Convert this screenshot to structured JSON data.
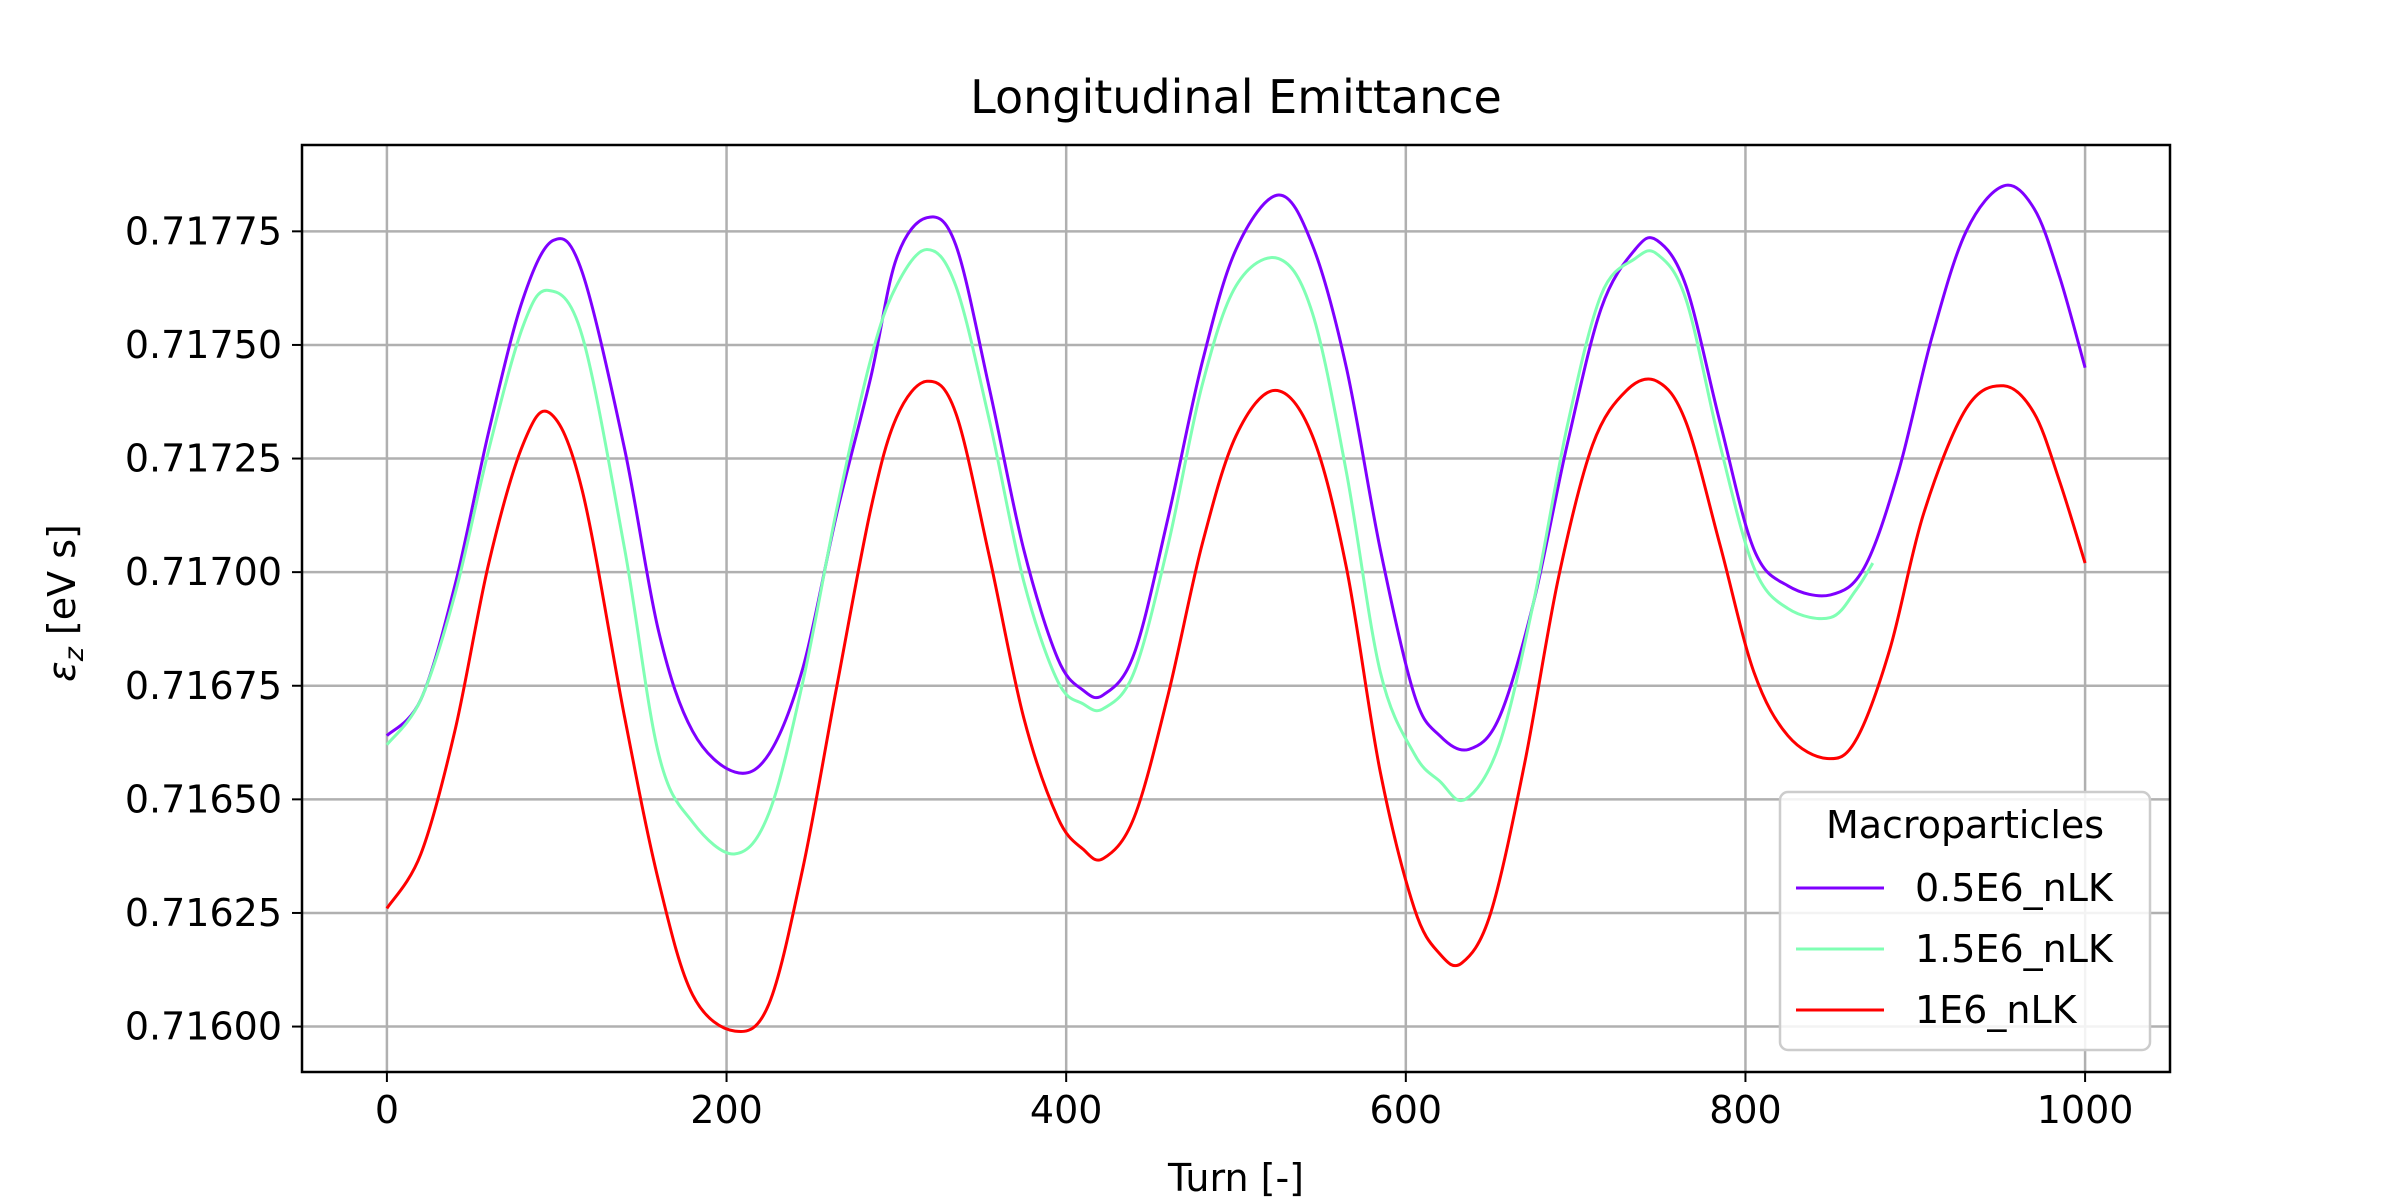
{
  "chart_data": {
    "type": "line",
    "title": "Longitudinal Emittance",
    "xlabel": "Turn [-]",
    "ylabel": "ε",
    "ylabel_sub": "z",
    "ylabel_unit": "[eV s]",
    "xlim": [
      -50,
      1050
    ],
    "ylim": [
      0.7159,
      0.71794
    ],
    "x_ticks": [
      0,
      200,
      400,
      600,
      800,
      1000
    ],
    "y_ticks": [
      0.716,
      0.71625,
      0.7165,
      0.71675,
      0.717,
      0.71725,
      0.7175,
      0.71775
    ],
    "x_tick_labels": [
      "0",
      "200",
      "400",
      "600",
      "800",
      "1000"
    ],
    "y_tick_labels": [
      "0.71600",
      "0.71625",
      "0.71650",
      "0.71675",
      "0.71700",
      "0.71725",
      "0.71750",
      "0.71775"
    ],
    "grid": true,
    "legend": {
      "title": "Macroparticles",
      "placement": "lower-right"
    },
    "series": [
      {
        "name": "0.5E6_nLK",
        "color": "#7f00ff",
        "x": [
          0,
          20,
          40,
          60,
          80,
          98,
          115,
          140,
          160,
          180,
          205,
          225,
          245,
          265,
          285,
          300,
          318,
          335,
          355,
          375,
          395,
          410,
          422,
          440,
          460,
          480,
          500,
          525,
          545,
          565,
          585,
          605,
          620,
          637,
          655,
          675,
          695,
          715,
          735,
          748,
          765,
          785,
          805,
          825,
          850,
          870,
          890,
          910,
          930,
          952,
          970,
          985,
          1000
        ],
        "y": [
          0.71664,
          0.71672,
          0.71697,
          0.71731,
          0.7176,
          0.71773,
          0.71766,
          0.71727,
          0.71687,
          0.71665,
          0.71656,
          0.7166,
          0.71679,
          0.71713,
          0.71743,
          0.71769,
          0.71778,
          0.71772,
          0.7174,
          0.71705,
          0.71681,
          0.71674,
          0.71673,
          0.71682,
          0.71712,
          0.71746,
          0.71771,
          0.71783,
          0.71772,
          0.71745,
          0.71705,
          0.71673,
          0.71664,
          0.71661,
          0.71668,
          0.71693,
          0.71728,
          0.71758,
          0.71771,
          0.71773,
          0.71763,
          0.71733,
          0.71705,
          0.71697,
          0.71695,
          0.71701,
          0.71722,
          0.71752,
          0.71775,
          0.71785,
          0.7178,
          0.71765,
          0.71745
        ]
      },
      {
        "name": "1.5E6_nLK",
        "color": "#80ffb4",
        "x": [
          0,
          20,
          40,
          60,
          80,
          95,
          115,
          140,
          160,
          180,
          205,
          225,
          245,
          265,
          285,
          300,
          318,
          335,
          355,
          375,
          395,
          410,
          422,
          440,
          460,
          480,
          500,
          525,
          545,
          565,
          585,
          605,
          620,
          635,
          655,
          675,
          695,
          715,
          735,
          748,
          765,
          785,
          805,
          825,
          850,
          865,
          875
        ],
        "y": [
          0.71662,
          0.71672,
          0.71695,
          0.71727,
          0.71754,
          0.71762,
          0.71752,
          0.71705,
          0.7166,
          0.71645,
          0.71638,
          0.71647,
          0.71676,
          0.71714,
          0.71747,
          0.71763,
          0.71771,
          0.71763,
          0.71733,
          0.71698,
          0.71676,
          0.71671,
          0.7167,
          0.71678,
          0.71706,
          0.71741,
          0.71763,
          0.71769,
          0.71757,
          0.71722,
          0.71678,
          0.7166,
          0.71654,
          0.7165,
          0.71662,
          0.71693,
          0.71732,
          0.71761,
          0.71769,
          0.7177,
          0.7176,
          0.71728,
          0.71701,
          0.71692,
          0.7169,
          0.71696,
          0.71702
        ]
      },
      {
        "name": "1E6_nLK",
        "color": "#ff0000",
        "x": [
          0,
          20,
          40,
          60,
          80,
          96,
          115,
          140,
          160,
          180,
          205,
          225,
          245,
          265,
          285,
          300,
          318,
          335,
          355,
          375,
          395,
          410,
          422,
          440,
          460,
          480,
          500,
          523,
          545,
          565,
          585,
          605,
          620,
          633,
          650,
          670,
          690,
          710,
          730,
          748,
          765,
          785,
          805,
          825,
          848,
          865,
          885,
          905,
          930,
          952,
          970,
          985,
          1000
        ],
        "y": [
          0.71626,
          0.71638,
          0.71665,
          0.71702,
          0.71728,
          0.71735,
          0.71718,
          0.71668,
          0.71632,
          0.71607,
          0.71599,
          0.71605,
          0.71635,
          0.71675,
          0.71714,
          0.71734,
          0.71742,
          0.71735,
          0.71703,
          0.71668,
          0.71646,
          0.71639,
          0.71637,
          0.71646,
          0.71673,
          0.71706,
          0.7173,
          0.7174,
          0.7173,
          0.71701,
          0.71656,
          0.71626,
          0.71616,
          0.71614,
          0.71625,
          0.71658,
          0.71699,
          0.71728,
          0.7174,
          0.71742,
          0.71733,
          0.71706,
          0.71678,
          0.71664,
          0.71659,
          0.71663,
          0.71683,
          0.71713,
          0.71736,
          0.71741,
          0.71735,
          0.7172,
          0.71702
        ]
      }
    ]
  }
}
